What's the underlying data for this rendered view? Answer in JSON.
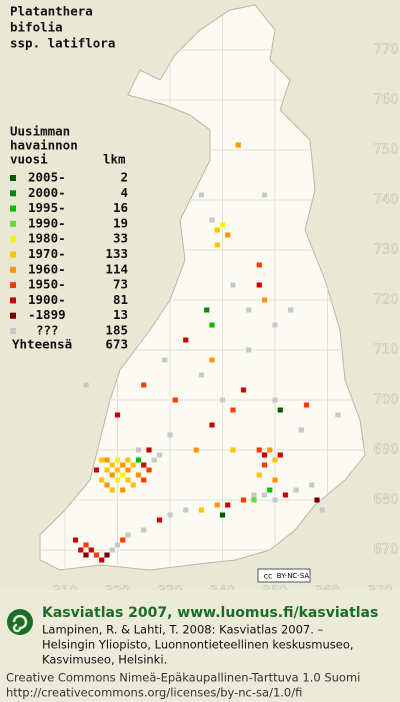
{
  "title_lines": [
    "Platanthera",
    "bifolia",
    "ssp. latiflora"
  ],
  "legend": {
    "header_lines": [
      "Uusimman",
      "havainnon",
      "vuosi"
    ],
    "count_header": "lkm",
    "entries": [
      {
        "label": "2005-",
        "count": 2,
        "color": "#005a00"
      },
      {
        "label": "2000-",
        "count": 4,
        "color": "#008a00"
      },
      {
        "label": "1995-",
        "count": 16,
        "color": "#00c000"
      },
      {
        "label": "1990-",
        "count": 19,
        "color": "#66dd33"
      },
      {
        "label": "1980-",
        "count": 33,
        "color": "#f5f500"
      },
      {
        "label": "1970-",
        "count": 133,
        "color": "#ffc400"
      },
      {
        "label": "1960-",
        "count": 114,
        "color": "#ff9500"
      },
      {
        "label": "1950-",
        "count": 73,
        "color": "#ff3a00"
      },
      {
        "label": "1900-",
        "count": 81,
        "color": "#cc0000"
      },
      {
        "label": "-1899",
        "count": 13,
        "color": "#7a0000"
      },
      {
        "label": "???",
        "count": 185,
        "color": "#c8c8c8"
      }
    ],
    "total_label": "Yhteensä",
    "total": 673
  },
  "map": {
    "easting_labels": [
      310,
      320,
      330,
      340,
      350,
      360,
      370
    ],
    "northing_labels": [
      770,
      760,
      750,
      740,
      730,
      720,
      710,
      700,
      690,
      680,
      670
    ],
    "points": [
      [
        317,
        688,
        5
      ],
      [
        318,
        688,
        6
      ],
      [
        319,
        687,
        5
      ],
      [
        320,
        688,
        4
      ],
      [
        321,
        687,
        6
      ],
      [
        322,
        688,
        5
      ],
      [
        318,
        686,
        5
      ],
      [
        319,
        685,
        6
      ],
      [
        320,
        686,
        5
      ],
      [
        321,
        685,
        4
      ],
      [
        322,
        686,
        6
      ],
      [
        323,
        687,
        5
      ],
      [
        324,
        688,
        2
      ],
      [
        325,
        687,
        8
      ],
      [
        317,
        684,
        5
      ],
      [
        318,
        683,
        6
      ],
      [
        320,
        684,
        4
      ],
      [
        322,
        684,
        5
      ],
      [
        324,
        685,
        6
      ],
      [
        326,
        686,
        7
      ],
      [
        319,
        682,
        5
      ],
      [
        321,
        682,
        6
      ],
      [
        323,
        683,
        5
      ],
      [
        325,
        684,
        7
      ],
      [
        327,
        688,
        10
      ],
      [
        328,
        689,
        10
      ],
      [
        316,
        686,
        8
      ],
      [
        326,
        690,
        8
      ],
      [
        324,
        690,
        10
      ],
      [
        313,
        670,
        8
      ],
      [
        314,
        669,
        9
      ],
      [
        315,
        670,
        8
      ],
      [
        316,
        669,
        7
      ],
      [
        317,
        668,
        8
      ],
      [
        318,
        669,
        9
      ],
      [
        314,
        671,
        7
      ],
      [
        312,
        672,
        8
      ],
      [
        319,
        670,
        10
      ],
      [
        320,
        671,
        10
      ],
      [
        321,
        672,
        7
      ],
      [
        322,
        673,
        10
      ],
      [
        325,
        674,
        10
      ],
      [
        328,
        676,
        8
      ],
      [
        330,
        677,
        10
      ],
      [
        333,
        678,
        10
      ],
      [
        336,
        678,
        5
      ],
      [
        339,
        679,
        6
      ],
      [
        341,
        679,
        8
      ],
      [
        344,
        680,
        7
      ],
      [
        346,
        681,
        10
      ],
      [
        348,
        681,
        10
      ],
      [
        350,
        680,
        10
      ],
      [
        352,
        681,
        8
      ],
      [
        354,
        682,
        10
      ],
      [
        357,
        683,
        10
      ],
      [
        358,
        680,
        9
      ],
      [
        359,
        678,
        10
      ],
      [
        347,
        690,
        7
      ],
      [
        348,
        689,
        8
      ],
      [
        349,
        690,
        6
      ],
      [
        350,
        688,
        5
      ],
      [
        348,
        687,
        7
      ],
      [
        351,
        689,
        8
      ],
      [
        347,
        685,
        5
      ],
      [
        350,
        684,
        6
      ],
      [
        349,
        682,
        2
      ],
      [
        346,
        680,
        3
      ],
      [
        335,
        690,
        6
      ],
      [
        338,
        695,
        8
      ],
      [
        340,
        700,
        10
      ],
      [
        342,
        698,
        7
      ],
      [
        344,
        702,
        8
      ],
      [
        336,
        705,
        10
      ],
      [
        331,
        700,
        7
      ],
      [
        329,
        708,
        10
      ],
      [
        333,
        712,
        8
      ],
      [
        338,
        708,
        6
      ],
      [
        345,
        710,
        10
      ],
      [
        350,
        700,
        10
      ],
      [
        356,
        699,
        7
      ],
      [
        362,
        697,
        10
      ],
      [
        355,
        694,
        10
      ],
      [
        342,
        690,
        5
      ],
      [
        330,
        693,
        10
      ],
      [
        320,
        697,
        8
      ],
      [
        314,
        703,
        10
      ],
      [
        325,
        703,
        7
      ],
      [
        339,
        734,
        5
      ],
      [
        340,
        735,
        4
      ],
      [
        341,
        733,
        6
      ],
      [
        339,
        731,
        5
      ],
      [
        338,
        736,
        10
      ],
      [
        347,
        727,
        7
      ],
      [
        347,
        723,
        8
      ],
      [
        348,
        720,
        6
      ],
      [
        342,
        723,
        10
      ],
      [
        345,
        718,
        10
      ],
      [
        350,
        715,
        10
      ],
      [
        338,
        715,
        2
      ],
      [
        337,
        718,
        1
      ],
      [
        336,
        741,
        10
      ],
      [
        343,
        751,
        6
      ],
      [
        353,
        718,
        10
      ],
      [
        348,
        741,
        10
      ],
      [
        351,
        698,
        0
      ],
      [
        340,
        677,
        0
      ]
    ]
  },
  "license_badge": [
    "cc",
    "BY-NC-SA"
  ],
  "footer": {
    "brand": "Kasviatlas 2007, www.luomus.fi/kasviatlas",
    "citation": [
      "Lampinen, R. & Lahti, T. 2008: Kasviatlas 2007. –",
      "Helsingin Yliopisto, Luonnontieteellinen keskusmuseo,",
      "Kasvimuseo, Helsinki."
    ],
    "license": [
      "Creative Commons Nimeä-Epäkaupallinen-Tarttuva 1.0 Suomi",
      "http://creativecommons.org/licenses/by-nc-sa/1.0/fi"
    ]
  }
}
